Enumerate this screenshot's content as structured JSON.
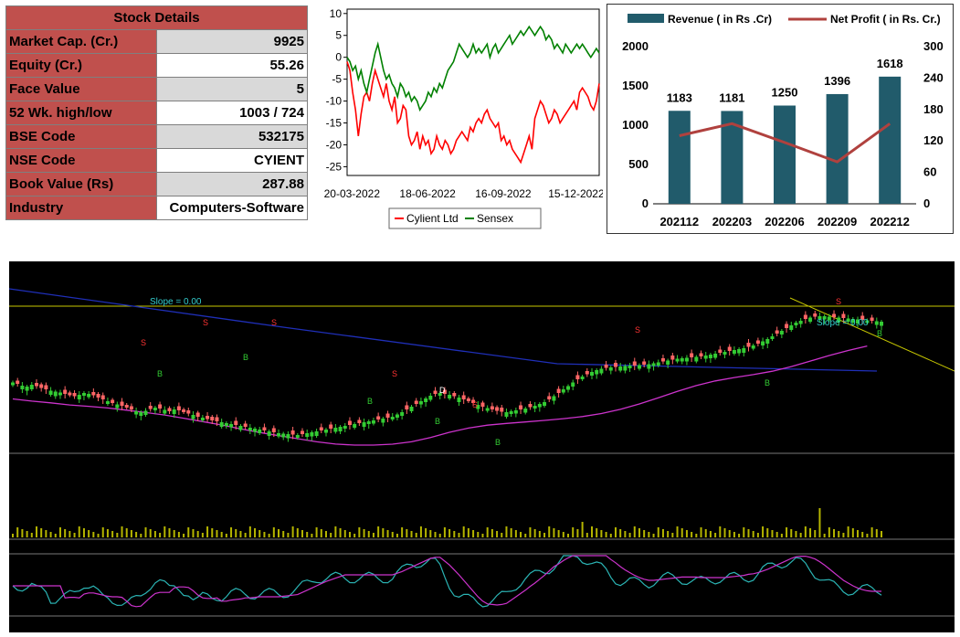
{
  "stock_details": {
    "title": "Stock Details",
    "rows": [
      {
        "label": "Market Cap. (Cr.)",
        "value": "9925"
      },
      {
        "label": "Equity (Cr.)",
        "value": "55.26"
      },
      {
        "label": "Face Value",
        "value": "5"
      },
      {
        "label": "52 Wk. high/low",
        "value": "1003 / 724"
      },
      {
        "label": "BSE Code",
        "value": "532175"
      },
      {
        "label": "NSE Code",
        "value": "CYIENT"
      },
      {
        "label": "Book Value (Rs)",
        "value": "287.88"
      },
      {
        "label": "Industry",
        "value": "Computers-Software"
      }
    ]
  },
  "colors": {
    "header_bg": "#c0504d",
    "cylient": "#ff0000",
    "sensex": "#008000",
    "revenue_bar": "#215b6b",
    "net_profit": "#b0413e",
    "bull_candle": "#33cc33",
    "bear_candle": "#ff6666",
    "volume": "#b5b500"
  },
  "chart_data": [
    {
      "type": "line",
      "title": "",
      "xlabel": "",
      "ylabel": "",
      "ylim": [
        -27,
        11
      ],
      "yticks": [
        10,
        5,
        0,
        -5,
        -10,
        -15,
        -20,
        -25
      ],
      "xticks": [
        "20-03-2022",
        "18-06-2022",
        "16-09-2022",
        "15-12-2022"
      ],
      "legend_position": "bottom",
      "grid": false,
      "x": [
        0,
        3,
        6,
        9,
        12,
        15,
        18,
        21,
        24,
        27,
        30,
        33,
        36,
        39,
        42,
        45,
        48,
        51,
        54,
        57,
        60,
        63,
        66,
        69,
        72,
        75,
        78,
        81,
        84,
        87,
        90,
        93,
        96,
        99,
        102,
        105,
        108,
        111,
        114,
        117,
        120,
        123,
        126,
        129,
        132,
        135,
        138,
        141,
        144,
        147,
        150,
        153,
        156,
        159,
        162,
        165,
        168,
        171,
        174,
        177,
        180,
        183,
        186,
        189,
        192,
        195,
        198,
        201,
        204,
        207,
        210,
        213,
        216,
        219,
        222,
        225,
        228,
        231,
        234,
        237,
        240,
        243,
        246,
        249,
        252,
        255,
        258,
        261,
        264,
        267,
        270
      ],
      "series": [
        {
          "name": "Cylient Ltd",
          "values": [
            -1,
            -3,
            -8,
            -12,
            -18,
            -13,
            -9,
            -8,
            -10,
            -6,
            -3,
            -5,
            -7,
            -9,
            -6,
            -10,
            -12,
            -9,
            -15,
            -14,
            -11,
            -12,
            -18,
            -20,
            -19,
            -17,
            -21,
            -18,
            -20,
            -19,
            -22,
            -21,
            -18,
            -20,
            -21,
            -19,
            -20,
            -22,
            -21,
            -19,
            -18,
            -17,
            -18,
            -19,
            -16,
            -17,
            -15,
            -14,
            -15,
            -13,
            -12,
            -14,
            -15,
            -16,
            -15,
            -19,
            -18,
            -20,
            -19,
            -21,
            -22,
            -23,
            -24,
            -22,
            -20,
            -18,
            -21,
            -14,
            -12,
            -10,
            -11,
            -13,
            -15,
            -14,
            -12,
            -13,
            -15,
            -14,
            -13,
            -12,
            -11,
            -10,
            -12,
            -8,
            -7,
            -8,
            -9,
            -11,
            -12,
            -10,
            -6
          ],
          "line_color": "#ff0000"
        },
        {
          "name": "Sensex",
          "values": [
            0,
            -1,
            -3,
            -2,
            -5,
            -3,
            -6,
            -8,
            -5,
            -2,
            1,
            3,
            0,
            -3,
            -5,
            -4,
            -6,
            -7,
            -9,
            -6,
            -7,
            -9,
            -8,
            -10,
            -9,
            -10,
            -12,
            -11,
            -10,
            -8,
            -9,
            -7,
            -8,
            -6,
            -7,
            -5,
            -3,
            -2,
            -1,
            1,
            3,
            2,
            1,
            0,
            1,
            3,
            1,
            2,
            1,
            2,
            3,
            0,
            2,
            3,
            1,
            2,
            3,
            4,
            5,
            3,
            4,
            5,
            6,
            5,
            6,
            7,
            6,
            5,
            6,
            7,
            6,
            4,
            5,
            4,
            2,
            3,
            2,
            1,
            3,
            2,
            1,
            2,
            3,
            2,
            3,
            2,
            1,
            0,
            1,
            2,
            1
          ],
          "line_color": "#008000"
        }
      ]
    },
    {
      "type": "bar",
      "title": "",
      "categories": [
        "202112",
        "202203",
        "202206",
        "202209",
        "202212"
      ],
      "ylim": [
        0,
        2000
      ],
      "yticks": [
        0,
        500,
        1000,
        1500,
        2000
      ],
      "y2lim": [
        0,
        300
      ],
      "y2ticks": [
        0,
        60,
        120,
        180,
        240,
        300
      ],
      "legend_position": "top",
      "grid": false,
      "series": [
        {
          "name": "Revenue ( in Rs .Cr)",
          "type": "bar",
          "values": [
            1183,
            1181,
            1250,
            1396,
            1618
          ],
          "data_labels": [
            "1183",
            "1181",
            "1250",
            "1396",
            "1618"
          ]
        },
        {
          "name": "Net Profit ( in Rs. Cr.)",
          "type": "line",
          "axis": "right",
          "values": [
            130,
            153,
            117,
            80,
            153
          ]
        }
      ]
    },
    {
      "type": "candlestick",
      "title": "",
      "grid": false,
      "annotations": [
        {
          "text": "Slope = 0.00"
        },
        {
          "text": "Slope = 0.00"
        }
      ],
      "ohlc_close_approx": [
        455,
        452,
        448,
        446,
        450,
        447,
        443,
        440,
        437,
        435,
        433,
        430,
        427,
        425,
        428,
        432,
        430,
        427,
        422,
        418,
        414,
        410,
        407,
        404,
        400,
        396,
        392,
        390,
        393,
        397,
        400,
        398,
        395,
        392,
        396,
        394,
        390,
        387,
        384,
        380,
        378,
        375,
        372,
        370,
        368,
        366,
        364,
        362,
        360,
        358,
        356,
        354,
        352,
        350,
        348,
        346,
        344,
        343,
        342,
        341,
        340,
        342,
        344,
        346,
        348,
        350,
        352,
        354,
        356,
        358,
        360,
        362,
        364,
        366,
        368,
        370,
        372,
        374,
        376,
        378,
        380,
        385,
        390,
        396,
        402,
        408,
        414,
        420,
        426,
        430,
        432,
        430,
        428,
        425,
        422,
        418,
        414,
        410,
        406,
        402,
        399,
        396,
        393,
        391,
        390,
        392,
        394,
        396,
        398,
        401,
        404,
        408,
        412,
        418,
        425,
        432,
        440,
        447,
        455,
        462,
        468,
        473,
        478,
        482,
        485,
        487,
        488,
        489,
        490,
        491,
        492,
        492,
        493,
        494,
        495,
        497,
        499,
        501,
        503,
        505,
        507,
        508,
        509,
        510,
        511,
        512,
        514,
        516,
        518,
        520,
        522,
        524,
        526,
        528,
        530,
        533,
        536,
        540,
        545,
        550,
        556,
        562,
        568,
        574,
        580,
        586,
        590,
        594,
        597,
        599,
        600,
        600,
        599,
        598,
        597,
        596,
        595,
        594,
        593,
        592,
        591,
        590,
        589,
        588
      ],
      "oscillator_lines": 2
    }
  ],
  "legend_compare": {
    "cylient": "Cylient Ltd",
    "sensex": "Sensex"
  },
  "legend_finance": {
    "revenue": "Revenue ( in Rs .Cr)",
    "profit": "Net Profit ( in Rs. Cr.)"
  },
  "tech_labels": {
    "slope1": "Slope = 0.00",
    "slope2": "Slope = 0.00",
    "buy": "B",
    "sell": "S",
    "div": "D"
  }
}
